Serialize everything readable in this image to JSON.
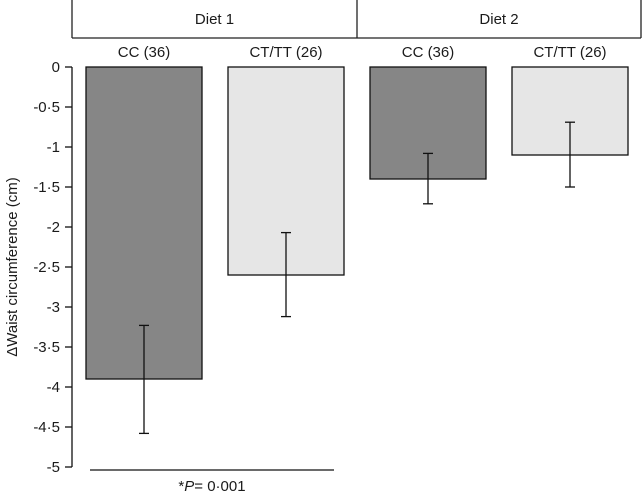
{
  "chart_data": {
    "type": "bar",
    "ylabel": "ΔWaist circumference (cm)",
    "ylim": [
      -5,
      0
    ],
    "yticks": [
      0,
      -0.5,
      -1,
      -1.5,
      -2,
      -2.5,
      -3,
      -3.5,
      -4,
      -4.5,
      -5
    ],
    "ytick_labels": [
      "0",
      "-0·5",
      "-1",
      "-1·5",
      "-2",
      "-2·5",
      "-3",
      "-3·5",
      "-4",
      "-4·5",
      "-5"
    ],
    "groups": [
      {
        "name": "Diet 1",
        "categories": [
          "CC (36)",
          "CT/TT (26)"
        ]
      },
      {
        "name": "Diet 2",
        "categories": [
          "CC (36)",
          "CT/TT (26)"
        ]
      }
    ],
    "categories": [
      "CC (36)",
      "CT/TT (26)",
      "CC (36)",
      "CT/TT (26)"
    ],
    "values": [
      -3.9,
      -2.6,
      -1.4,
      -1.1
    ],
    "error_upper": [
      -3.23,
      -2.07,
      -1.08,
      -0.69
    ],
    "error_lower": [
      -4.58,
      -3.12,
      -1.71,
      -1.5
    ],
    "bar_colors": [
      "#868686",
      "#e6e6e6",
      "#868686",
      "#e6e6e6"
    ],
    "annotation": {
      "prefix": "*",
      "italic": "P",
      "rest": "= 0·001"
    },
    "grid": false
  }
}
